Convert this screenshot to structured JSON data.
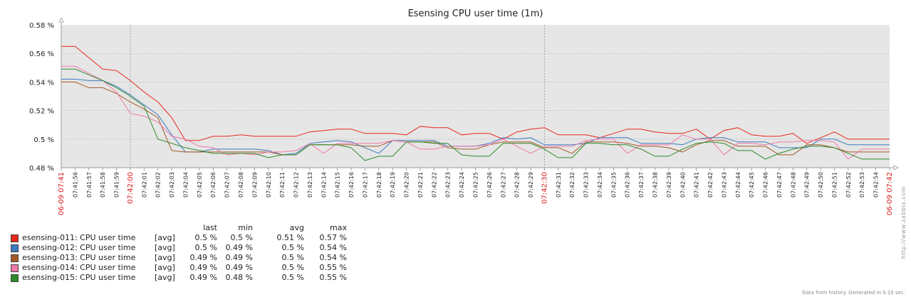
{
  "chart_data": {
    "type": "line",
    "title": "Esensing CPU user time (1m)",
    "y_ticks": [
      "0.58 %",
      "0.56 %",
      "0.54 %",
      "0.52 %",
      "0.5 %",
      "0.48 %"
    ],
    "y_range": [
      0.48,
      0.58
    ],
    "grid": true,
    "x_start_label": "06-09 07:41",
    "x_end_label": "06-09 07:42",
    "x_ticks": [
      "07:41:56",
      "07:41:57",
      "07:41:58",
      "07:41:59",
      "07:42:00",
      "07:42:01",
      "07:42:02",
      "07:42:03",
      "07:42:04",
      "07:42:05",
      "07:42:06",
      "07:42:07",
      "07:42:08",
      "07:42:09",
      "07:42:10",
      "07:42:11",
      "07:42:12",
      "07:42:13",
      "07:42:14",
      "07:42:15",
      "07:42:16",
      "07:42:17",
      "07:42:18",
      "07:42:19",
      "07:42:20",
      "07:42:21",
      "07:42:22",
      "07:42:23",
      "07:42:24",
      "07:42:25",
      "07:42:26",
      "07:42:27",
      "07:42:28",
      "07:42:29",
      "07:42:30",
      "07:42:31",
      "07:42:32",
      "07:42:33",
      "07:42:34",
      "07:42:35",
      "07:42:36",
      "07:42:37",
      "07:42:38",
      "07:42:39",
      "07:42:40",
      "07:42:41",
      "07:42:42",
      "07:42:43",
      "07:42:44",
      "07:42:45",
      "07:42:46",
      "07:42:47",
      "07:42:48",
      "07:42:49",
      "07:42:50",
      "07:42:51",
      "07:42:52",
      "07:42:53",
      "07:42:54"
    ],
    "major_ticks": [
      "07:42:00",
      "07:42:30"
    ],
    "legend_columns": [
      "last",
      "min",
      "avg",
      "max"
    ],
    "series": [
      {
        "name": "esensing-011: CPU user time",
        "fn": "[avg]",
        "color": "#e8281c",
        "last": "0.5 %",
        "min": "0.5 %",
        "avg": "0.51 %",
        "max": "0.57 %",
        "values": [
          0.565,
          0.565,
          0.557,
          0.549,
          0.548,
          0.541,
          0.533,
          0.526,
          0.515,
          0.499,
          0.499,
          0.502,
          0.502,
          0.503,
          0.502,
          0.502,
          0.502,
          0.502,
          0.505,
          0.506,
          0.507,
          0.507,
          0.504,
          0.504,
          0.504,
          0.503,
          0.509,
          0.508,
          0.508,
          0.503,
          0.504,
          0.504,
          0.5,
          0.505,
          0.507,
          0.508,
          0.503,
          0.503,
          0.503,
          0.501,
          0.504,
          0.507,
          0.507,
          0.505,
          0.504,
          0.504,
          0.507,
          0.5,
          0.506,
          0.508,
          0.503,
          0.502,
          0.502,
          0.504,
          0.497,
          0.501,
          0.505,
          0.5,
          0.5,
          0.5,
          0.5
        ]
      },
      {
        "name": "esensing-012: CPU user time",
        "fn": "[avg]",
        "color": "#3a7bbf",
        "last": "0.5 %",
        "min": "0.49 %",
        "avg": "0.5 %",
        "max": "0.54 %",
        "values": [
          0.542,
          0.542,
          0.541,
          0.541,
          0.537,
          0.531,
          0.524,
          0.517,
          0.503,
          0.491,
          0.491,
          0.493,
          0.493,
          0.493,
          0.493,
          0.492,
          0.489,
          0.49,
          0.497,
          0.498,
          0.499,
          0.498,
          0.494,
          0.49,
          0.499,
          0.499,
          0.499,
          0.499,
          0.495,
          0.495,
          0.495,
          0.497,
          0.501,
          0.5,
          0.501,
          0.496,
          0.496,
          0.496,
          0.497,
          0.501,
          0.501,
          0.501,
          0.497,
          0.497,
          0.497,
          0.496,
          0.5,
          0.501,
          0.501,
          0.498,
          0.498,
          0.498,
          0.494,
          0.494,
          0.494,
          0.5,
          0.5,
          0.496,
          0.496,
          0.496,
          0.496
        ]
      },
      {
        "name": "esensing-013: CPU user time",
        "fn": "[avg]",
        "color": "#a35a28",
        "last": "0.49 %",
        "min": "0.49 %",
        "avg": "0.5 %",
        "max": "0.54 %",
        "values": [
          0.54,
          0.54,
          0.536,
          0.536,
          0.532,
          0.526,
          0.521,
          0.515,
          0.492,
          0.491,
          0.491,
          0.491,
          0.491,
          0.491,
          0.491,
          0.491,
          0.489,
          0.489,
          0.496,
          0.496,
          0.496,
          0.496,
          0.495,
          0.495,
          0.499,
          0.498,
          0.498,
          0.498,
          0.494,
          0.493,
          0.493,
          0.496,
          0.498,
          0.498,
          0.498,
          0.494,
          0.494,
          0.49,
          0.498,
          0.498,
          0.498,
          0.497,
          0.495,
          0.495,
          0.494,
          0.491,
          0.496,
          0.499,
          0.499,
          0.495,
          0.495,
          0.495,
          0.489,
          0.489,
          0.496,
          0.496,
          0.494,
          0.491,
          0.491,
          0.491,
          0.491
        ]
      },
      {
        "name": "esensing-014: CPU user time",
        "fn": "[avg]",
        "color": "#f078a8",
        "last": "0.49 %",
        "min": "0.49 %",
        "avg": "0.5 %",
        "max": "0.55 %",
        "values": [
          0.551,
          0.551,
          0.546,
          0.541,
          0.533,
          0.518,
          0.516,
          0.512,
          0.502,
          0.5,
          0.495,
          0.494,
          0.489,
          0.49,
          0.489,
          0.491,
          0.491,
          0.492,
          0.497,
          0.49,
          0.497,
          0.497,
          0.497,
          0.497,
          0.499,
          0.498,
          0.493,
          0.493,
          0.495,
          0.495,
          0.495,
          0.496,
          0.5,
          0.495,
          0.49,
          0.495,
          0.495,
          0.495,
          0.499,
          0.5,
          0.5,
          0.49,
          0.496,
          0.496,
          0.496,
          0.503,
          0.5,
          0.5,
          0.489,
          0.497,
          0.497,
          0.496,
          0.498,
          0.498,
          0.499,
          0.499,
          0.498,
          0.486,
          0.493,
          0.493,
          0.493
        ]
      },
      {
        "name": "esensing-015: CPU user time",
        "fn": "[avg]",
        "color": "#2e8a2a",
        "last": "0.49 %",
        "min": "0.48 %",
        "avg": "0.5 %",
        "max": "0.55 %",
        "values": [
          0.549,
          0.549,
          0.545,
          0.541,
          0.536,
          0.53,
          0.523,
          0.5,
          0.497,
          0.494,
          0.492,
          0.49,
          0.49,
          0.49,
          0.49,
          0.487,
          0.489,
          0.489,
          0.496,
          0.496,
          0.496,
          0.494,
          0.485,
          0.488,
          0.488,
          0.498,
          0.498,
          0.497,
          0.497,
          0.489,
          0.488,
          0.488,
          0.497,
          0.497,
          0.497,
          0.493,
          0.487,
          0.487,
          0.497,
          0.497,
          0.496,
          0.496,
          0.493,
          0.488,
          0.488,
          0.493,
          0.497,
          0.498,
          0.497,
          0.492,
          0.492,
          0.486,
          0.49,
          0.493,
          0.495,
          0.495,
          0.494,
          0.49,
          0.486,
          0.486,
          0.486
        ]
      }
    ]
  },
  "footer": "Data from history. Generated in 0.15 sec.",
  "brand": "http://www.zabbix.com"
}
